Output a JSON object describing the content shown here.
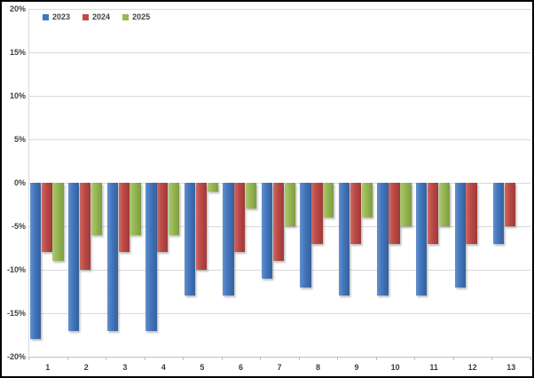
{
  "chart_data": {
    "type": "bar",
    "title": "",
    "xlabel": "",
    "ylabel": "",
    "categories": [
      "1",
      "2",
      "3",
      "4",
      "5",
      "6",
      "7",
      "8",
      "9",
      "10",
      "11",
      "12",
      "13"
    ],
    "series": [
      {
        "name": "2023",
        "color": "#4477BE",
        "color_light": "#6591CC",
        "color_dark": "#35609B",
        "values": [
          -18,
          -17,
          -17,
          -17,
          -13,
          -13,
          -11,
          -12,
          -13,
          -13,
          -13,
          -12,
          -7
        ]
      },
      {
        "name": "2024",
        "color": "#BE4B48",
        "color_light": "#CC6B66",
        "color_dark": "#9E3A38",
        "values": [
          -8,
          -10,
          -8,
          -8,
          -10,
          -8,
          -9,
          -7,
          -7,
          -7,
          -7,
          -7,
          -5
        ]
      },
      {
        "name": "2025",
        "color": "#98B954",
        "color_light": "#ADC873",
        "color_dark": "#7E9C41",
        "values": [
          -9,
          -6,
          -6,
          -6,
          -1,
          -3,
          -5,
          -4,
          -4,
          -5,
          -5,
          0,
          0
        ]
      }
    ],
    "ylim": [
      -20,
      20
    ],
    "ytick_labels": [
      "20%",
      "15%",
      "10%",
      "5%",
      "0%",
      "-5%",
      "-10%",
      "-15%",
      "-20%"
    ],
    "ytick_values": [
      20,
      15,
      10,
      5,
      0,
      -5,
      -10,
      -15,
      -20
    ],
    "grid": true,
    "legend_position": "top-left-inside",
    "gridline_color": "#d9d9d9",
    "axis_line_color": "#bfbfbf",
    "label_color": "#404040"
  }
}
